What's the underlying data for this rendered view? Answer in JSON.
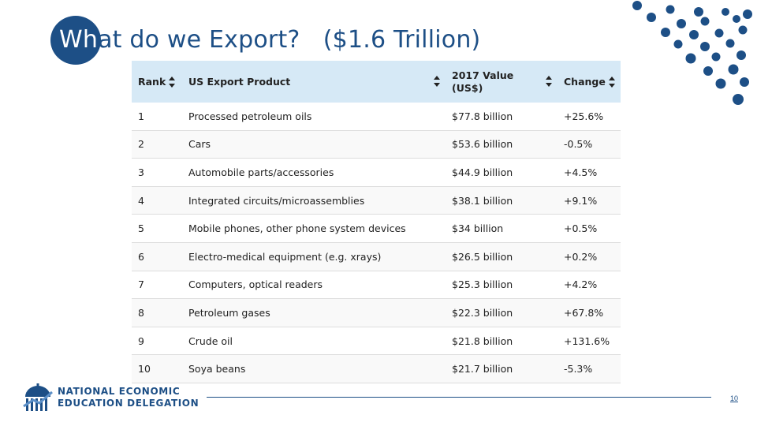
{
  "slide": {
    "title_first": "Wh",
    "title_rest": "at do we Export?   ($1.6 Trillion)",
    "page_number": "10",
    "accent_color": "#1d4f86"
  },
  "table": {
    "headers": {
      "rank": "Rank",
      "product": "US Export Product",
      "value": "2017 Value (US$)",
      "change": "Change"
    },
    "rows": [
      {
        "rank": "1",
        "product": "Processed petroleum oils",
        "value": "$77.8 billion",
        "change": "+25.6%"
      },
      {
        "rank": "2",
        "product": "Cars",
        "value": "$53.6 billion",
        "change": "-0.5%"
      },
      {
        "rank": "3",
        "product": "Automobile parts/accessories",
        "value": "$44.9 billion",
        "change": "+4.5%"
      },
      {
        "rank": "4",
        "product": "Integrated circuits/microassemblies",
        "value": "$38.1 billion",
        "change": "+9.1%"
      },
      {
        "rank": "5",
        "product": "Mobile phones, other phone system devices",
        "value": "$34 billion",
        "change": "+0.5%"
      },
      {
        "rank": "6",
        "product": "Electro-medical equipment (e.g. xrays)",
        "value": "$26.5 billion",
        "change": "+0.2%"
      },
      {
        "rank": "7",
        "product": "Computers, optical readers",
        "value": "$25.3 billion",
        "change": "+4.2%"
      },
      {
        "rank": "8",
        "product": "Petroleum gases",
        "value": "$22.3 billion",
        "change": "+67.8%"
      },
      {
        "rank": "9",
        "product": "Crude oil",
        "value": "$21.8 billion",
        "change": "+131.6%"
      },
      {
        "rank": "10",
        "product": "Soya beans",
        "value": "$21.7 billion",
        "change": "-5.3%"
      }
    ]
  },
  "logo": {
    "line1": "NATIONAL ECONOMIC",
    "line2": "EDUCATION DELEGATION"
  }
}
